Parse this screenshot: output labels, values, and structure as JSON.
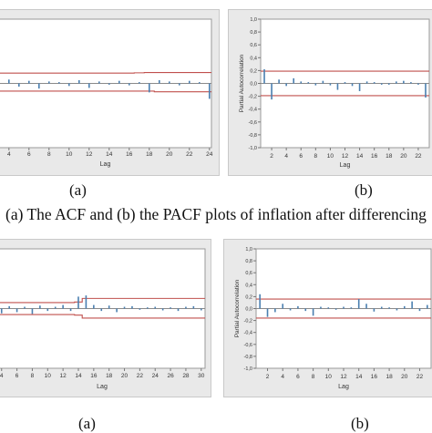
{
  "chart_data": [
    {
      "id": "acf1",
      "type": "bar",
      "xlabel": "Lag",
      "ylabel": "",
      "x_ticks": [
        4,
        6,
        8,
        10,
        12,
        14,
        16,
        18,
        20,
        22,
        24
      ],
      "lags": [
        3,
        4,
        5,
        6,
        7,
        8,
        9,
        10,
        11,
        12,
        13,
        14,
        15,
        16,
        17,
        18,
        19,
        20,
        21,
        22,
        23,
        24
      ],
      "values": [
        -0.06,
        0.06,
        -0.05,
        0.04,
        -0.08,
        0.03,
        0.02,
        -0.04,
        0.05,
        -0.07,
        0.03,
        -0.02,
        0.04,
        -0.03,
        0.02,
        -0.14,
        0.05,
        0.03,
        -0.03,
        0.04,
        0.02,
        -0.24
      ],
      "upper_limit": [
        0.16,
        0.16,
        0.16,
        0.16,
        0.16,
        0.16,
        0.16,
        0.16,
        0.16,
        0.16,
        0.16,
        0.16,
        0.16,
        0.16,
        0.165,
        0.17,
        0.17,
        0.17,
        0.17,
        0.17,
        0.17,
        0.17
      ],
      "lower_limit": [
        -0.12,
        -0.12,
        -0.12,
        -0.12,
        -0.12,
        -0.12,
        -0.12,
        -0.12,
        -0.12,
        -0.12,
        -0.12,
        -0.12,
        -0.12,
        -0.12,
        -0.12,
        -0.12,
        -0.13,
        -0.13,
        -0.13,
        -0.13,
        -0.13,
        -0.13
      ],
      "ylim": [
        -1.0,
        1.0
      ],
      "bar_color": "#4a7fb0",
      "limit_color": "#c0504d"
    },
    {
      "id": "pacf1",
      "type": "bar",
      "xlabel": "Lag",
      "ylabel": "Partial Autocorrelation",
      "y_ticks": [
        "1,0",
        "0,8",
        "0,6",
        "0,4",
        "0,2",
        "0,0",
        "-0,2",
        "-0,4",
        "-0,6",
        "-0,8",
        "-1,0"
      ],
      "x_ticks": [
        2,
        4,
        6,
        8,
        10,
        12,
        14,
        16,
        18,
        20,
        22
      ],
      "lags": [
        1,
        2,
        3,
        4,
        5,
        6,
        7,
        8,
        9,
        10,
        11,
        12,
        13,
        14,
        15,
        16,
        17,
        18,
        19,
        20,
        21,
        22,
        23
      ],
      "values": [
        0.22,
        -0.25,
        0.06,
        -0.04,
        0.08,
        0.03,
        0.02,
        -0.03,
        0.04,
        -0.03,
        -0.1,
        0.02,
        -0.04,
        -0.12,
        0.03,
        0.02,
        -0.02,
        -0.02,
        0.03,
        0.04,
        0.02,
        -0.02,
        -0.22
      ],
      "upper_limit": 0.19,
      "lower_limit": -0.19,
      "ylim": [
        -1.0,
        1.0
      ],
      "bar_color": "#4a7fb0",
      "limit_color": "#c0504d"
    },
    {
      "id": "acf2",
      "type": "bar",
      "xlabel": "Lag",
      "ylabel": "",
      "x_ticks": [
        4,
        6,
        8,
        10,
        12,
        14,
        16,
        18,
        20,
        22,
        24,
        26,
        28,
        30
      ],
      "lags": [
        2,
        3,
        4,
        5,
        6,
        7,
        8,
        9,
        10,
        11,
        12,
        13,
        14,
        15,
        16,
        17,
        18,
        19,
        20,
        21,
        22,
        23,
        24,
        25,
        26,
        27,
        28,
        29,
        30
      ],
      "values": [
        0.02,
        -0.05,
        -0.08,
        0.04,
        -0.06,
        0.03,
        -0.09,
        0.05,
        -0.04,
        0.03,
        0.06,
        -0.04,
        0.2,
        0.22,
        0.06,
        -0.04,
        0.05,
        -0.06,
        0.03,
        0.04,
        -0.02,
        0.02,
        0.03,
        -0.03,
        0.02,
        -0.04,
        0.03,
        0.04,
        -0.03
      ],
      "upper_limit": [
        0.1,
        0.1,
        0.1,
        0.1,
        0.1,
        0.1,
        0.1,
        0.1,
        0.1,
        0.1,
        0.1,
        0.1,
        0.11,
        0.17,
        0.17,
        0.17,
        0.17,
        0.17,
        0.17,
        0.17,
        0.17,
        0.17,
        0.17,
        0.17,
        0.17,
        0.17,
        0.17,
        0.17,
        0.17
      ],
      "lower_limit": [
        -0.1,
        -0.1,
        -0.1,
        -0.1,
        -0.1,
        -0.1,
        -0.1,
        -0.1,
        -0.1,
        -0.1,
        -0.1,
        -0.1,
        -0.11,
        -0.16,
        -0.16,
        -0.16,
        -0.16,
        -0.16,
        -0.16,
        -0.16,
        -0.16,
        -0.16,
        -0.16,
        -0.16,
        -0.16,
        -0.16,
        -0.16,
        -0.16,
        -0.16
      ],
      "ylim": [
        -1.0,
        1.0
      ],
      "bar_color": "#4a7fb0",
      "limit_color": "#c0504d"
    },
    {
      "id": "pacf2",
      "type": "bar",
      "xlabel": "Lag",
      "ylabel": "Partial Autocorrelation",
      "y_ticks": [
        "1,0",
        "0,8",
        "0,6",
        "0,4",
        "0,2",
        "0,0",
        "-0,2",
        "-0,4",
        "-0,6",
        "-0,8",
        "-1,0"
      ],
      "x_ticks": [
        2,
        4,
        6,
        8,
        10,
        12,
        14,
        16,
        18,
        20,
        22
      ],
      "lags": [
        1,
        2,
        3,
        4,
        5,
        6,
        7,
        8,
        9,
        10,
        11,
        12,
        13,
        14,
        15,
        16,
        17,
        18,
        19,
        20,
        21,
        22,
        23
      ],
      "values": [
        0.24,
        -0.14,
        -0.06,
        0.08,
        -0.03,
        0.04,
        -0.04,
        -0.12,
        0.03,
        0.02,
        -0.02,
        0.03,
        0.02,
        0.16,
        0.08,
        -0.05,
        0.03,
        0.02,
        -0.03,
        0.04,
        0.12,
        -0.04,
        0.06
      ],
      "upper_limit": 0.16,
      "lower_limit": -0.16,
      "ylim": [
        -1.0,
        1.0
      ],
      "bar_color": "#4a7fb0",
      "limit_color": "#c0504d"
    }
  ],
  "labels": {
    "sub_a": "(a)",
    "sub_b": "(b)",
    "caption": "(a) The ACF and (b) the PACF plots of inflation after differencing"
  }
}
